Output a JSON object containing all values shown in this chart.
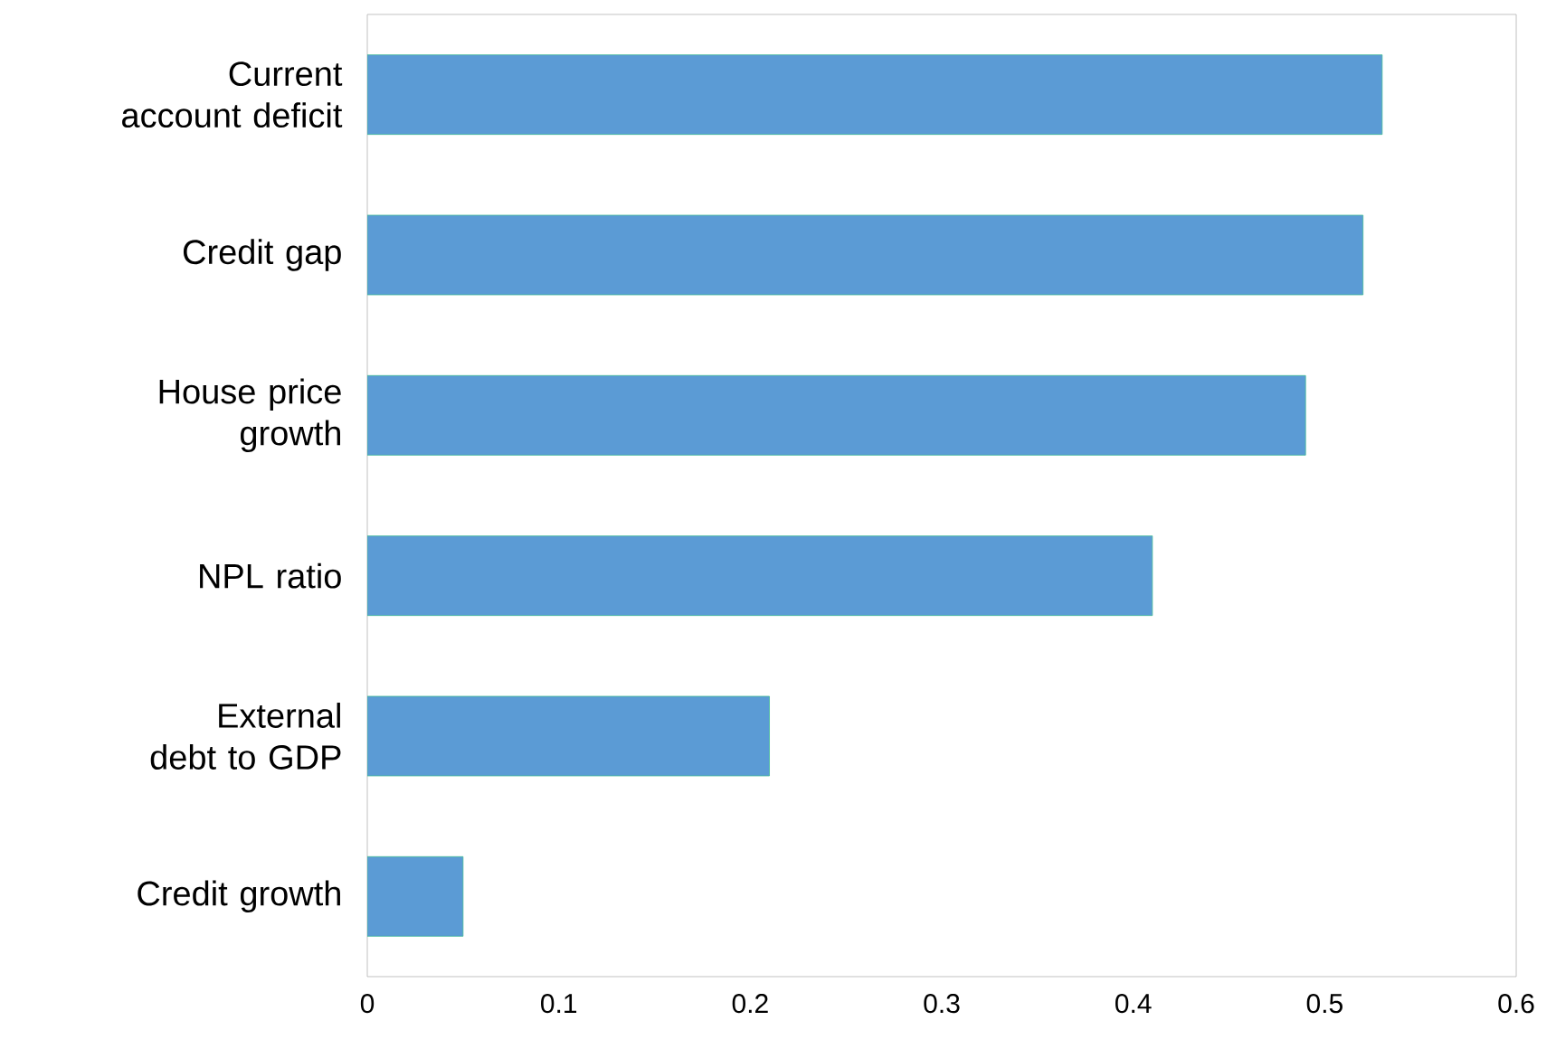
{
  "chart_data": {
    "type": "bar",
    "orientation": "horizontal",
    "categories": [
      "Current account deficit",
      "Credit gap",
      "House price growth",
      "NPL ratio",
      "External debt to GDP",
      "Credit growth"
    ],
    "values": [
      0.53,
      0.52,
      0.49,
      0.41,
      0.21,
      0.05
    ],
    "color": "#5b9bd5",
    "xlim": [
      0,
      0.6
    ],
    "xticks": [
      0,
      0.1,
      0.2,
      0.3,
      0.4,
      0.5,
      0.6
    ],
    "grid": false
  }
}
